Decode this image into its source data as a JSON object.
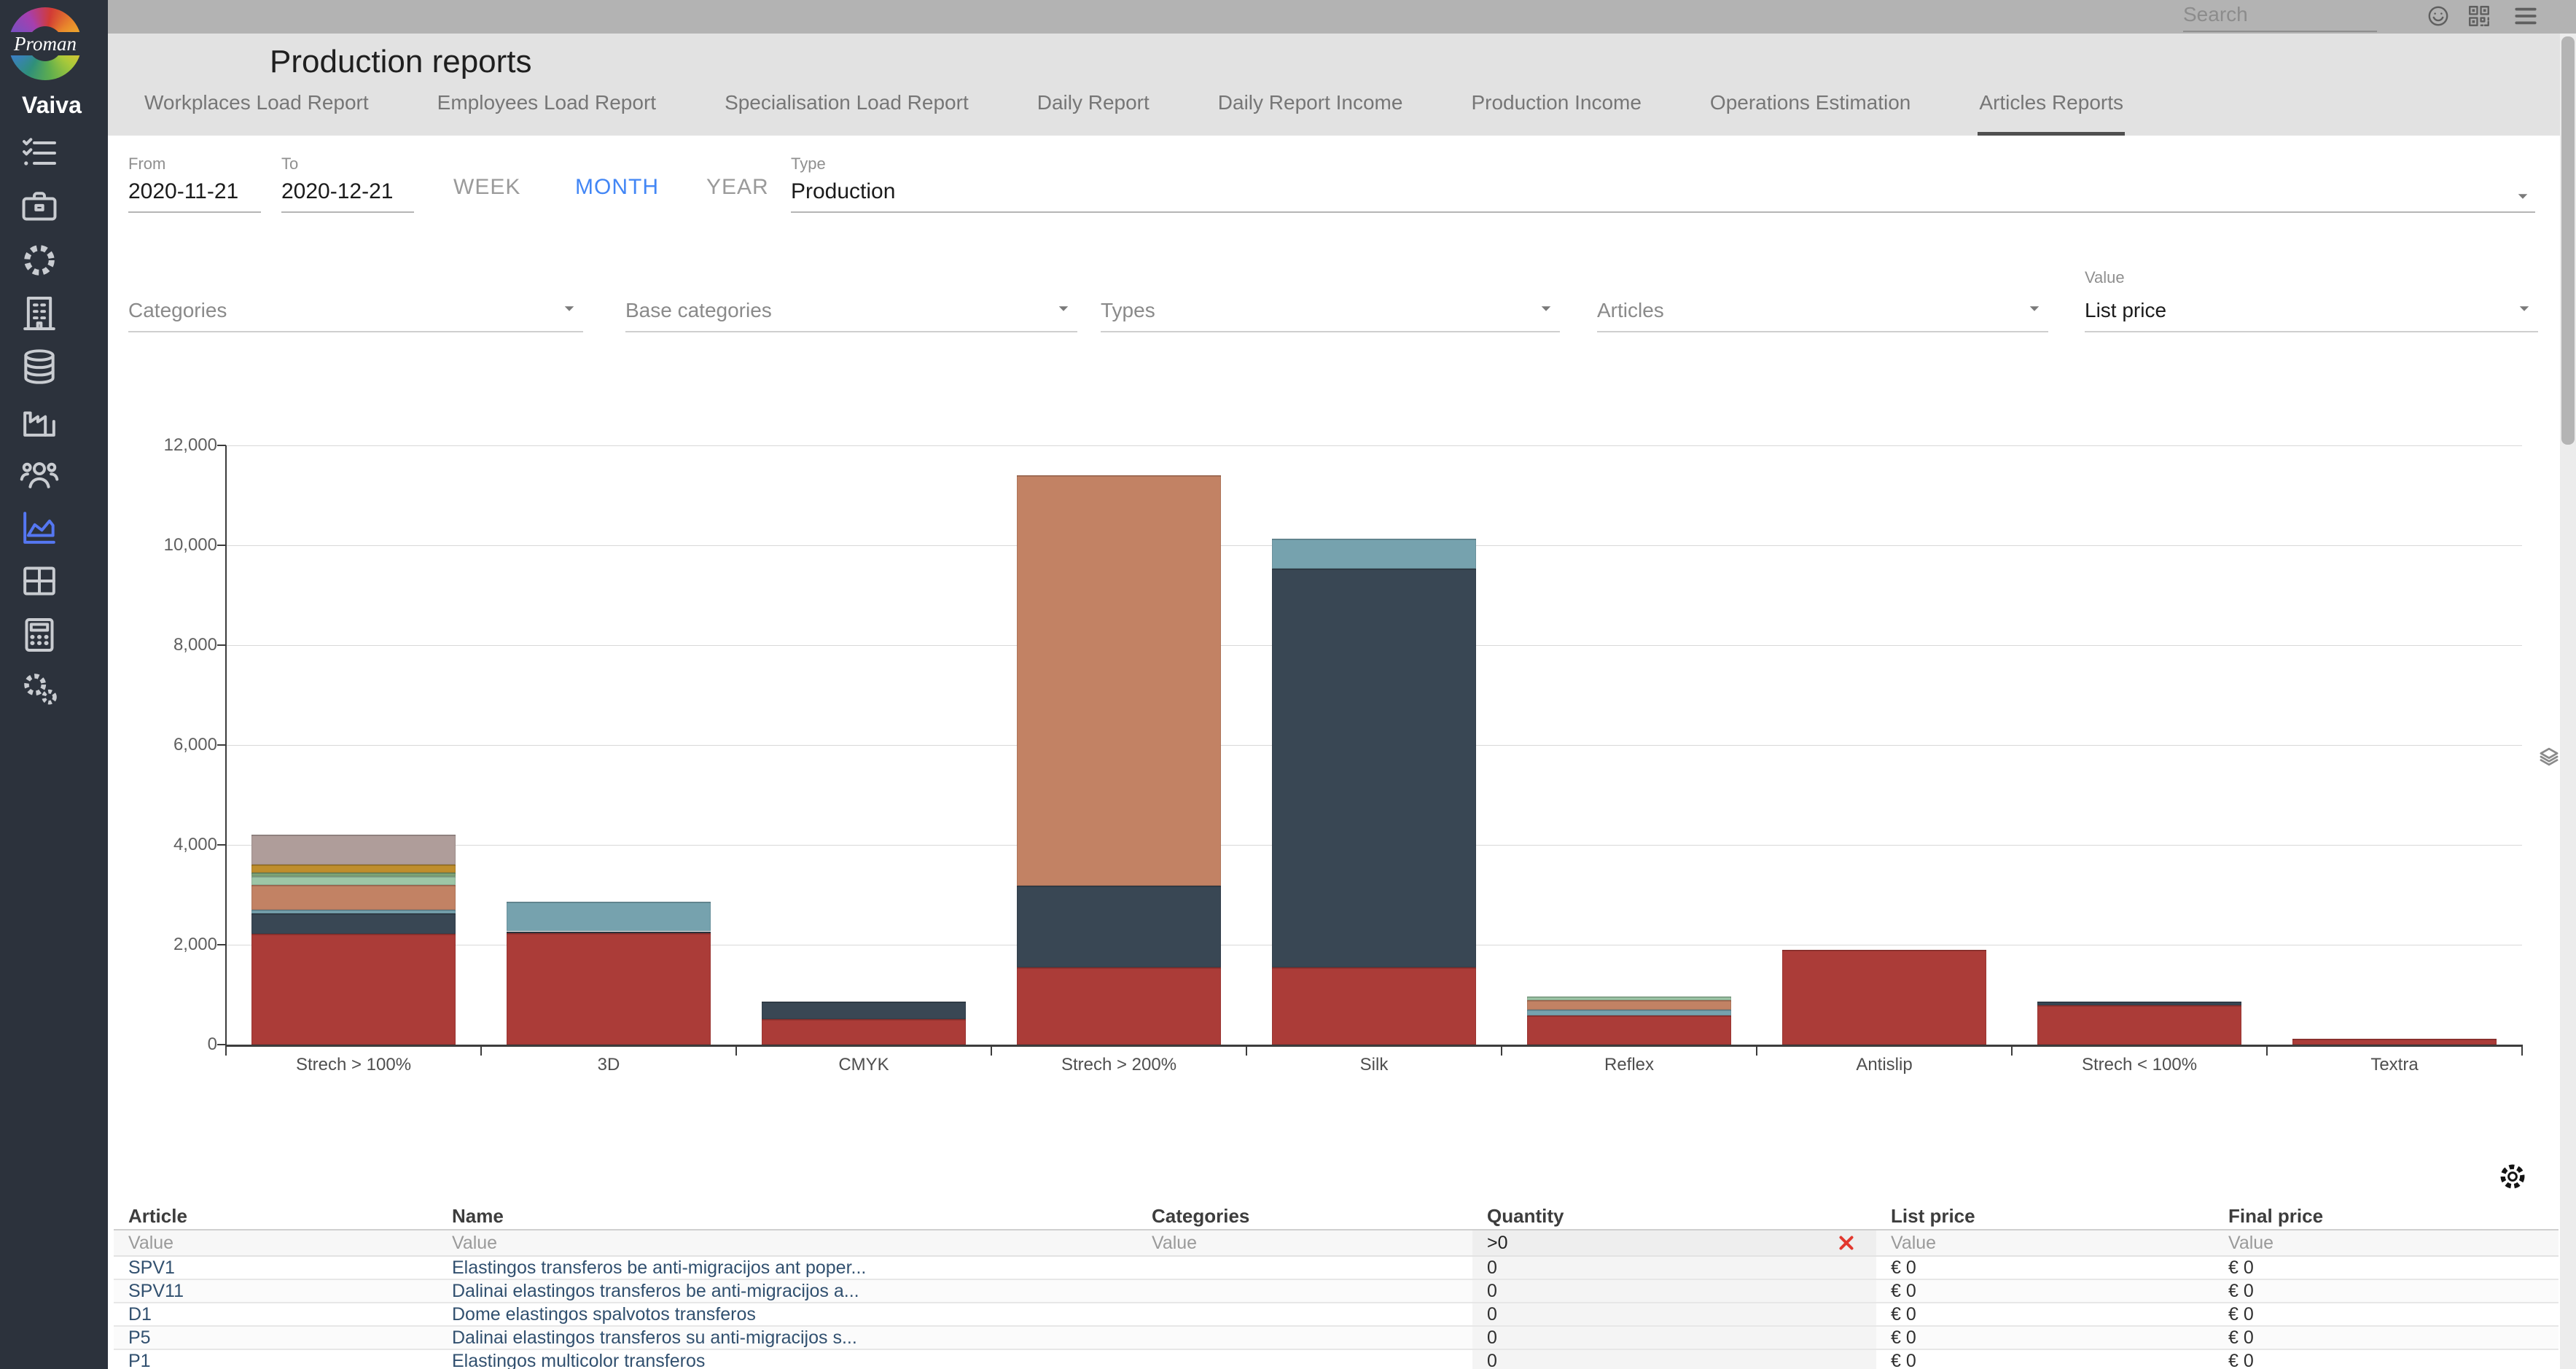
{
  "sidebar": {
    "logo_text": "Proman",
    "user_name": "Vaiva",
    "nav_icons": [
      {
        "name": "checklist-icon",
        "active": false
      },
      {
        "name": "briefcase-icon",
        "active": false
      },
      {
        "name": "cog-icon",
        "active": false
      },
      {
        "name": "building-icon",
        "active": false
      },
      {
        "name": "database-icon",
        "active": false
      },
      {
        "name": "factory-icon",
        "active": false
      },
      {
        "name": "team-icon",
        "active": false
      },
      {
        "name": "area-chart-icon",
        "active": true
      },
      {
        "name": "grid-icon",
        "active": false
      },
      {
        "name": "calculator-icon",
        "active": false
      },
      {
        "name": "gears-icon",
        "active": false
      }
    ]
  },
  "topbar": {
    "search_placeholder": "Search",
    "icons": [
      "smiley-icon",
      "qr-code-icon",
      "menu-icon"
    ]
  },
  "header": {
    "title": "Production reports",
    "tabs": [
      {
        "label": "Workplaces Load Report",
        "active": false
      },
      {
        "label": "Employees Load Report",
        "active": false
      },
      {
        "label": "Specialisation Load Report",
        "active": false
      },
      {
        "label": "Daily Report",
        "active": false
      },
      {
        "label": "Daily Report Income",
        "active": false
      },
      {
        "label": "Production Income",
        "active": false
      },
      {
        "label": "Operations Estimation",
        "active": false
      },
      {
        "label": "Articles Reports",
        "active": true
      }
    ]
  },
  "filters": {
    "from": {
      "label": "From",
      "value": "2020-11-21"
    },
    "to": {
      "label": "To",
      "value": "2020-12-21"
    },
    "period_options": [
      {
        "label": "WEEK",
        "active": false
      },
      {
        "label": "MONTH",
        "active": true
      },
      {
        "label": "YEAR",
        "active": false
      }
    ],
    "type": {
      "label": "Type",
      "value": "Production"
    },
    "selects": [
      {
        "placeholder": "Categories"
      },
      {
        "placeholder": "Base categories"
      },
      {
        "placeholder": "Types"
      },
      {
        "placeholder": "Articles"
      }
    ],
    "value_select": {
      "label": "Value",
      "value": "List price"
    }
  },
  "chart_data": {
    "type": "bar",
    "stacked": true,
    "grid": true,
    "legend": "none",
    "ylim": [
      0,
      12000
    ],
    "yticks": [
      "0",
      "2,000",
      "4,000",
      "6,000",
      "8,000",
      "10,000",
      "12,000"
    ],
    "categories": [
      "Strech > 100%",
      "3D",
      "CMYK",
      "Strech > 200%",
      "Silk",
      "Reflex",
      "Antislip",
      "Strech < 100%",
      "Textra"
    ],
    "series": [
      {
        "color": "#ab3c38",
        "values": [
          2220,
          2240,
          510,
          1550,
          1550,
          585,
          1900,
          790,
          110
        ]
      },
      {
        "color": "#394754",
        "values": [
          410,
          30,
          350,
          1630,
          7980,
          0,
          0,
          75,
          0
        ]
      },
      {
        "color": "#76a2ae",
        "values": [
          65,
          590,
          0,
          0,
          600,
          115,
          0,
          0,
          0
        ]
      },
      {
        "color": "#c28264",
        "values": [
          505,
          0,
          0,
          8220,
          0,
          190,
          0,
          0,
          0
        ]
      },
      {
        "color": "#9dc6a7",
        "values": [
          165,
          0,
          0,
          0,
          0,
          75,
          0,
          0,
          0
        ]
      },
      {
        "color": "#7fa578",
        "values": [
          80,
          0,
          0,
          0,
          0,
          0,
          0,
          0,
          0
        ]
      },
      {
        "color": "#bf8e2d",
        "values": [
          165,
          0,
          0,
          0,
          0,
          0,
          0,
          0,
          0
        ]
      },
      {
        "color": "#af9d9a",
        "values": [
          590,
          0,
          0,
          0,
          0,
          0,
          0,
          0,
          0
        ]
      }
    ],
    "totals": [
      4200,
      2860,
      860,
      11400,
      10130,
      965,
      1900,
      865,
      110
    ]
  },
  "table": {
    "columns": [
      {
        "label": "Article",
        "filter": "Value"
      },
      {
        "label": "Name",
        "filter": "Value"
      },
      {
        "label": "Categories",
        "filter": "Value"
      },
      {
        "label": "Quantity",
        "filter": ">0",
        "has_clear": true
      },
      {
        "label": "List price",
        "filter": "Value"
      },
      {
        "label": "Final price",
        "filter": "Value"
      }
    ],
    "rows": [
      {
        "article": "SPV1",
        "name": "Elastingos transferos be anti-migracijos ant poper...",
        "categories": "",
        "quantity": "0",
        "list_price": "€ 0",
        "final_price": "€ 0"
      },
      {
        "article": "SPV11",
        "name": "Dalinai elastingos transferos be anti-migracijos a...",
        "categories": "",
        "quantity": "0",
        "list_price": "€ 0",
        "final_price": "€ 0"
      },
      {
        "article": "D1",
        "name": "Dome elastingos spalvotos transferos",
        "categories": "",
        "quantity": "0",
        "list_price": "€ 0",
        "final_price": "€ 0"
      },
      {
        "article": "P5",
        "name": "Dalinai elastingos transferos su anti-migracijos s...",
        "categories": "",
        "quantity": "0",
        "list_price": "€ 0",
        "final_price": "€ 0"
      },
      {
        "article": "P1",
        "name": "Elastingos multicolor transferos",
        "categories": "",
        "quantity": "0",
        "list_price": "€ 0",
        "final_price": "€ 0"
      }
    ]
  },
  "colors": {
    "sidebar_bg": "#2c323c",
    "topbar_bg": "#b3b3b3",
    "header_bg": "#e2e2e2",
    "accent_blue": "#4286f5",
    "active_icon_blue": "#5577f2",
    "table_link": "#31506f",
    "clear_red": "#e2382e"
  }
}
